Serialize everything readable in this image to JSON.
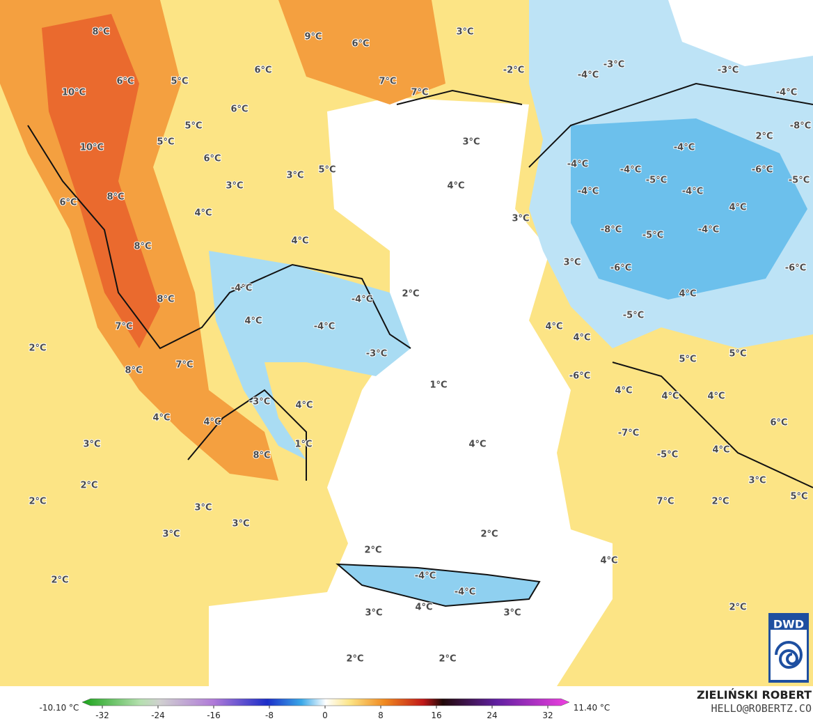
{
  "temperature_labels": [
    "8°C",
    "9°C",
    "6°C",
    "3°C",
    "6°C",
    "6°C",
    "5°C",
    "10°C",
    "7°C",
    "7°C",
    "-2°C",
    "-4°C",
    "-3°C",
    "-3°C",
    "-4°C",
    "-8°C",
    "6°C",
    "5°C",
    "10°C",
    "5°C",
    "6°C",
    "3°C",
    "5°C",
    "3°C",
    "3°C",
    "4°C",
    "2°C",
    "-4°C",
    "-4°C",
    "-4°C",
    "-6°C",
    "-5°C",
    "-4°C",
    "-4°C",
    "-5°C",
    "8°C",
    "6°C",
    "4°C",
    "4°C",
    "3°C",
    "-8°C",
    "-5°C",
    "-4°C",
    "8°C",
    "4°C",
    "3°C",
    "-6°C",
    "-6°C",
    "-4°C",
    "2°C",
    "-4°C",
    "8°C",
    "4°C",
    "4°C",
    "7°C",
    "-4°C",
    "-5°C",
    "4°C",
    "4°C",
    "2°C",
    "-3°C",
    "5°C",
    "5°C",
    "7°C",
    "8°C",
    "-6°C",
    "1°C",
    "4°C",
    "4°C",
    "4°C",
    "-3°C",
    "4°C",
    "4°C",
    "4°C",
    "6°C",
    "3°C",
    "1°C",
    "4°C",
    "-7°C",
    "-5°C",
    "4°C",
    "8°C",
    "2°C",
    "2°C",
    "3°C",
    "7°C",
    "2°C",
    "3°C",
    "5°C",
    "3°C",
    "3°C",
    "2°C",
    "2°C",
    "-4°C",
    "-4°C",
    "4°C",
    "2°C",
    "3°C",
    "4°C",
    "3°C",
    "2°C",
    "2°C",
    "2°C"
  ],
  "colorbar": {
    "min_label": "-10.10 °C",
    "max_label": "11.40 °C",
    "ticks": [
      -32,
      -24,
      -16,
      -8,
      0,
      8,
      16,
      24,
      32
    ]
  },
  "credit": {
    "author": "ZIELIŃSKI ROBERT",
    "contact": "HELLO@ROBERTZ.CO"
  },
  "logo": "DWD"
}
